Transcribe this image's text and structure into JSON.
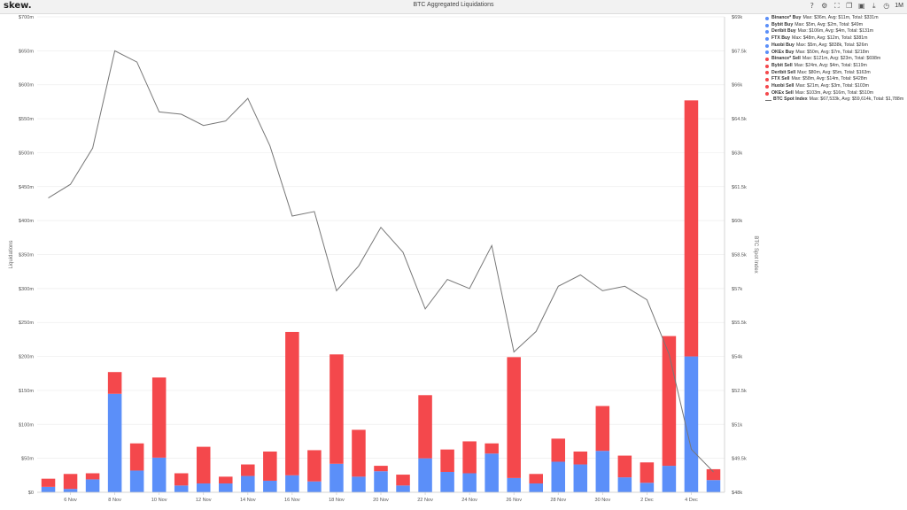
{
  "header": {
    "logo": "skew.",
    "title": "BTC Aggregated Liquidations",
    "icons": [
      "help-icon",
      "settings-icon",
      "expand-icon",
      "copy-icon",
      "camera-icon",
      "download-icon",
      "clock-icon"
    ],
    "range_label": "1M"
  },
  "colors": {
    "buy": "#5b8ff9",
    "sell": "#f4484c",
    "line": "#777777",
    "grid": "#eeeeee"
  },
  "legend": [
    {
      "name": "Binance* Buy",
      "stats": "Max: $36m, Avg: $11m, Total: $331m",
      "color": "#5b8ff9"
    },
    {
      "name": "Bybit Buy",
      "stats": "Max: $5m, Avg: $2m, Total: $49m",
      "color": "#5b8ff9"
    },
    {
      "name": "Deribit Buy",
      "stats": "Max: $106m, Avg: $4m, Total: $131m",
      "color": "#5b8ff9"
    },
    {
      "name": "FTX Buy",
      "stats": "Max: $48m, Avg: $12m, Total: $381m",
      "color": "#5b8ff9"
    },
    {
      "name": "Huobi Buy",
      "stats": "Max: $5m, Avg: $838k, Total: $26m",
      "color": "#5b8ff9"
    },
    {
      "name": "OKEx Buy",
      "stats": "Max: $50m, Avg: $7m, Total: $218m",
      "color": "#5b8ff9"
    },
    {
      "name": "Binance* Sell",
      "stats": "Max: $121m, Avg: $23m, Total: $698m",
      "color": "#f4484c"
    },
    {
      "name": "Bybit Sell",
      "stats": "Max: $24m, Avg: $4m, Total: $119m",
      "color": "#f4484c"
    },
    {
      "name": "Deribit Sell",
      "stats": "Max: $80m, Avg: $5m, Total: $163m",
      "color": "#f4484c"
    },
    {
      "name": "FTX Sell",
      "stats": "Max: $58m, Avg: $14m, Total: $428m",
      "color": "#f4484c"
    },
    {
      "name": "Huobi Sell",
      "stats": "Max: $21m, Avg: $3m, Total: $103m",
      "color": "#f4484c"
    },
    {
      "name": "OKEx Sell",
      "stats": "Max: $103m, Avg: $16m, Total: $510m",
      "color": "#f4484c"
    },
    {
      "name": "BTC Spot Index",
      "stats": "Max: $67,533k, Avg: $59,614k, Total: $1,788m",
      "color": "#777777",
      "line": true
    }
  ],
  "chart_data": {
    "type": "bar",
    "stacked": true,
    "x": [
      "5 Nov",
      "6 Nov",
      "7 Nov",
      "8 Nov",
      "9 Nov",
      "10 Nov",
      "11 Nov",
      "12 Nov",
      "13 Nov",
      "14 Nov",
      "15 Nov",
      "16 Nov",
      "17 Nov",
      "18 Nov",
      "19 Nov",
      "20 Nov",
      "21 Nov",
      "22 Nov",
      "23 Nov",
      "24 Nov",
      "25 Nov",
      "26 Nov",
      "27 Nov",
      "28 Nov",
      "29 Nov",
      "30 Nov",
      "1 Dec",
      "2 Dec",
      "3 Dec",
      "4 Dec",
      "5 Dec"
    ],
    "x_tick_labels": [
      "6 Nov",
      "8 Nov",
      "10 Nov",
      "12 Nov",
      "14 Nov",
      "16 Nov",
      "18 Nov",
      "20 Nov",
      "22 Nov",
      "24 Nov",
      "26 Nov",
      "28 Nov",
      "30 Nov",
      "2 Dec",
      "4 Dec"
    ],
    "series": [
      {
        "name": "Buy",
        "values": [
          8,
          5,
          19,
          145,
          32,
          51,
          10,
          13,
          13,
          24,
          17,
          25,
          16,
          42,
          23,
          31,
          10,
          50,
          30,
          28,
          57,
          21,
          13,
          45,
          41,
          61,
          22,
          14,
          39,
          200,
          18
        ]
      },
      {
        "name": "Sell",
        "values": [
          12,
          22,
          9,
          32,
          40,
          118,
          18,
          54,
          10,
          17,
          43,
          211,
          46,
          161,
          69,
          8,
          16,
          93,
          33,
          47,
          15,
          178,
          14,
          34,
          19,
          66,
          32,
          30,
          191,
          377,
          16
        ]
      },
      {
        "name": "BTC Spot Index",
        "axis": "right",
        "values": [
          61000,
          61600,
          63200,
          67500,
          67000,
          64800,
          64700,
          64200,
          64400,
          65400,
          63300,
          60200,
          60400,
          56900,
          58000,
          59700,
          58600,
          56100,
          57400,
          57000,
          58900,
          54200,
          55100,
          57100,
          57600,
          56900,
          57100,
          56500,
          54100,
          49900,
          48900
        ]
      }
    ],
    "y_left": {
      "label": "Liquidations",
      "ticks": [
        "$0",
        "$50m",
        "$100m",
        "$150m",
        "$200m",
        "$250m",
        "$300m",
        "$350m",
        "$400m",
        "$450m",
        "$500m",
        "$550m",
        "$600m",
        "$650m",
        "$700m"
      ],
      "range": [
        0,
        700
      ]
    },
    "y_right": {
      "label": "BTC Spot Index",
      "ticks": [
        "$48k",
        "$49.5k",
        "$51k",
        "$52.5k",
        "$54k",
        "$55.5k",
        "$57k",
        "$58.5k",
        "$60k",
        "$61.5k",
        "$63k",
        "$64.5k",
        "$66k",
        "$67.5k",
        "$69k"
      ],
      "range": [
        48000,
        69000
      ]
    },
    "grid": true,
    "legend_position": "right"
  }
}
